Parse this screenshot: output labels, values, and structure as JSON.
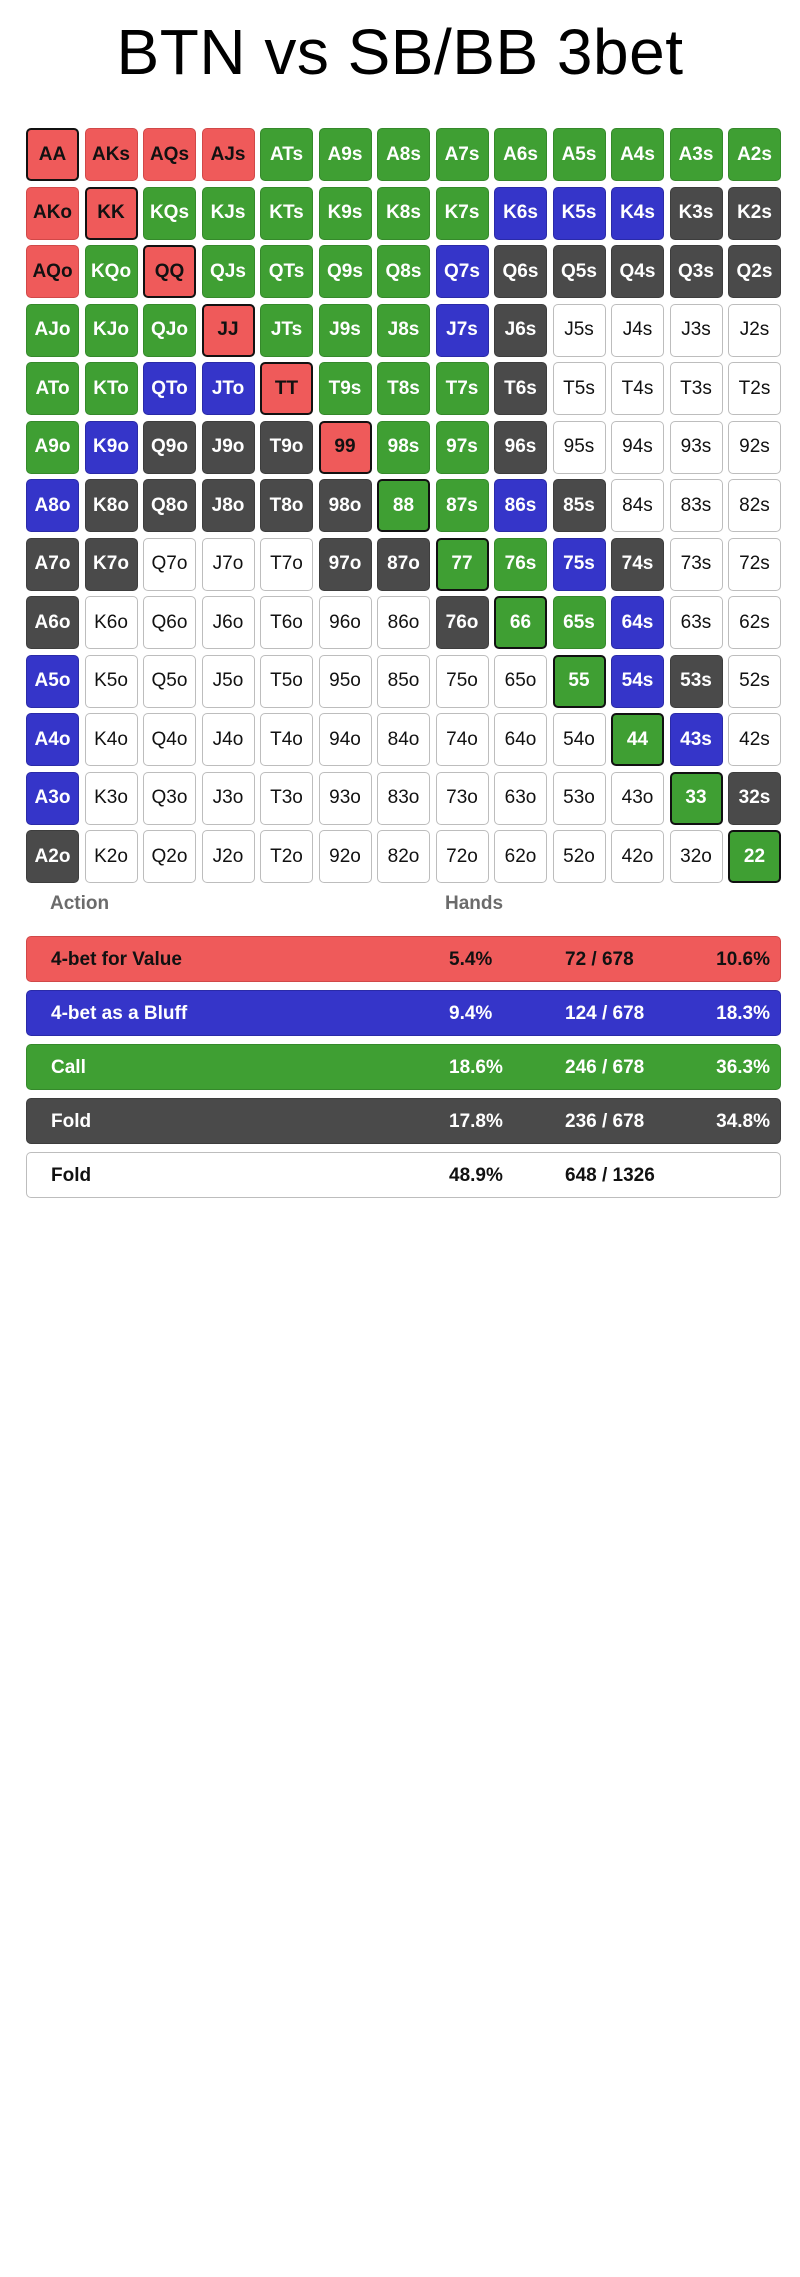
{
  "title": "BTN vs SB/BB 3bet",
  "colors": {
    "value": "#ef5a5a",
    "bluff": "#3535c9",
    "call": "#3f9f33",
    "fold": "#4a4a4a",
    "not_in_range": "#ffffff"
  },
  "grid": [
    [
      [
        "AA",
        "red",
        1
      ],
      [
        "AKs",
        "red",
        0
      ],
      [
        "AQs",
        "red",
        0
      ],
      [
        "AJs",
        "red",
        0
      ],
      [
        "ATs",
        "green",
        0
      ],
      [
        "A9s",
        "green",
        0
      ],
      [
        "A8s",
        "green",
        0
      ],
      [
        "A7s",
        "green",
        0
      ],
      [
        "A6s",
        "green",
        0
      ],
      [
        "A5s",
        "green",
        0
      ],
      [
        "A4s",
        "green",
        0
      ],
      [
        "A3s",
        "green",
        0
      ],
      [
        "A2s",
        "green",
        0
      ]
    ],
    [
      [
        "AKo",
        "red",
        0
      ],
      [
        "KK",
        "red",
        1
      ],
      [
        "KQs",
        "green",
        0
      ],
      [
        "KJs",
        "green",
        0
      ],
      [
        "KTs",
        "green",
        0
      ],
      [
        "K9s",
        "green",
        0
      ],
      [
        "K8s",
        "green",
        0
      ],
      [
        "K7s",
        "green",
        0
      ],
      [
        "K6s",
        "blue",
        0
      ],
      [
        "K5s",
        "blue",
        0
      ],
      [
        "K4s",
        "blue",
        0
      ],
      [
        "K3s",
        "dark",
        0
      ],
      [
        "K2s",
        "dark",
        0
      ]
    ],
    [
      [
        "AQo",
        "red",
        0
      ],
      [
        "KQo",
        "green",
        0
      ],
      [
        "QQ",
        "red",
        1
      ],
      [
        "QJs",
        "green",
        0
      ],
      [
        "QTs",
        "green",
        0
      ],
      [
        "Q9s",
        "green",
        0
      ],
      [
        "Q8s",
        "green",
        0
      ],
      [
        "Q7s",
        "blue",
        0
      ],
      [
        "Q6s",
        "dark",
        0
      ],
      [
        "Q5s",
        "dark",
        0
      ],
      [
        "Q4s",
        "dark",
        0
      ],
      [
        "Q3s",
        "dark",
        0
      ],
      [
        "Q2s",
        "dark",
        0
      ]
    ],
    [
      [
        "AJo",
        "green",
        0
      ],
      [
        "KJo",
        "green",
        0
      ],
      [
        "QJo",
        "green",
        0
      ],
      [
        "JJ",
        "red",
        1
      ],
      [
        "JTs",
        "green",
        0
      ],
      [
        "J9s",
        "green",
        0
      ],
      [
        "J8s",
        "green",
        0
      ],
      [
        "J7s",
        "blue",
        0
      ],
      [
        "J6s",
        "dark",
        0
      ],
      [
        "J5s",
        "white",
        0
      ],
      [
        "J4s",
        "white",
        0
      ],
      [
        "J3s",
        "white",
        0
      ],
      [
        "J2s",
        "white",
        0
      ]
    ],
    [
      [
        "ATo",
        "green",
        0
      ],
      [
        "KTo",
        "green",
        0
      ],
      [
        "QTo",
        "blue",
        0
      ],
      [
        "JTo",
        "blue",
        0
      ],
      [
        "TT",
        "red",
        1
      ],
      [
        "T9s",
        "green",
        0
      ],
      [
        "T8s",
        "green",
        0
      ],
      [
        "T7s",
        "green",
        0
      ],
      [
        "T6s",
        "dark",
        0
      ],
      [
        "T5s",
        "white",
        0
      ],
      [
        "T4s",
        "white",
        0
      ],
      [
        "T3s",
        "white",
        0
      ],
      [
        "T2s",
        "white",
        0
      ]
    ],
    [
      [
        "A9o",
        "green",
        0
      ],
      [
        "K9o",
        "blue",
        0
      ],
      [
        "Q9o",
        "dark",
        0
      ],
      [
        "J9o",
        "dark",
        0
      ],
      [
        "T9o",
        "dark",
        0
      ],
      [
        "99",
        "red",
        1
      ],
      [
        "98s",
        "green",
        0
      ],
      [
        "97s",
        "green",
        0
      ],
      [
        "96s",
        "dark",
        0
      ],
      [
        "95s",
        "white",
        0
      ],
      [
        "94s",
        "white",
        0
      ],
      [
        "93s",
        "white",
        0
      ],
      [
        "92s",
        "white",
        0
      ]
    ],
    [
      [
        "A8o",
        "blue",
        0
      ],
      [
        "K8o",
        "dark",
        0
      ],
      [
        "Q8o",
        "dark",
        0
      ],
      [
        "J8o",
        "dark",
        0
      ],
      [
        "T8o",
        "dark",
        0
      ],
      [
        "98o",
        "dark",
        0
      ],
      [
        "88",
        "green",
        1
      ],
      [
        "87s",
        "green",
        0
      ],
      [
        "86s",
        "blue",
        0
      ],
      [
        "85s",
        "dark",
        0
      ],
      [
        "84s",
        "white",
        0
      ],
      [
        "83s",
        "white",
        0
      ],
      [
        "82s",
        "white",
        0
      ]
    ],
    [
      [
        "A7o",
        "dark",
        0
      ],
      [
        "K7o",
        "dark",
        0
      ],
      [
        "Q7o",
        "white",
        0
      ],
      [
        "J7o",
        "white",
        0
      ],
      [
        "T7o",
        "white",
        0
      ],
      [
        "97o",
        "dark",
        0
      ],
      [
        "87o",
        "dark",
        0
      ],
      [
        "77",
        "green",
        1
      ],
      [
        "76s",
        "green",
        0
      ],
      [
        "75s",
        "blue",
        0
      ],
      [
        "74s",
        "dark",
        0
      ],
      [
        "73s",
        "white",
        0
      ],
      [
        "72s",
        "white",
        0
      ]
    ],
    [
      [
        "A6o",
        "dark",
        0
      ],
      [
        "K6o",
        "white",
        0
      ],
      [
        "Q6o",
        "white",
        0
      ],
      [
        "J6o",
        "white",
        0
      ],
      [
        "T6o",
        "white",
        0
      ],
      [
        "96o",
        "white",
        0
      ],
      [
        "86o",
        "white",
        0
      ],
      [
        "76o",
        "dark",
        0
      ],
      [
        "66",
        "green",
        1
      ],
      [
        "65s",
        "green",
        0
      ],
      [
        "64s",
        "blue",
        0
      ],
      [
        "63s",
        "white",
        0
      ],
      [
        "62s",
        "white",
        0
      ]
    ],
    [
      [
        "A5o",
        "blue",
        0
      ],
      [
        "K5o",
        "white",
        0
      ],
      [
        "Q5o",
        "white",
        0
      ],
      [
        "J5o",
        "white",
        0
      ],
      [
        "T5o",
        "white",
        0
      ],
      [
        "95o",
        "white",
        0
      ],
      [
        "85o",
        "white",
        0
      ],
      [
        "75o",
        "white",
        0
      ],
      [
        "65o",
        "white",
        0
      ],
      [
        "55",
        "green",
        1
      ],
      [
        "54s",
        "blue",
        0
      ],
      [
        "53s",
        "dark",
        0
      ],
      [
        "52s",
        "white",
        0
      ]
    ],
    [
      [
        "A4o",
        "blue",
        0
      ],
      [
        "K4o",
        "white",
        0
      ],
      [
        "Q4o",
        "white",
        0
      ],
      [
        "J4o",
        "white",
        0
      ],
      [
        "T4o",
        "white",
        0
      ],
      [
        "94o",
        "white",
        0
      ],
      [
        "84o",
        "white",
        0
      ],
      [
        "74o",
        "white",
        0
      ],
      [
        "64o",
        "white",
        0
      ],
      [
        "54o",
        "white",
        0
      ],
      [
        "44",
        "green",
        1
      ],
      [
        "43s",
        "blue",
        0
      ],
      [
        "42s",
        "white",
        0
      ]
    ],
    [
      [
        "A3o",
        "blue",
        0
      ],
      [
        "K3o",
        "white",
        0
      ],
      [
        "Q3o",
        "white",
        0
      ],
      [
        "J3o",
        "white",
        0
      ],
      [
        "T3o",
        "white",
        0
      ],
      [
        "93o",
        "white",
        0
      ],
      [
        "83o",
        "white",
        0
      ],
      [
        "73o",
        "white",
        0
      ],
      [
        "63o",
        "white",
        0
      ],
      [
        "53o",
        "white",
        0
      ],
      [
        "43o",
        "white",
        0
      ],
      [
        "33",
        "green",
        1
      ],
      [
        "32s",
        "dark",
        0
      ]
    ],
    [
      [
        "A2o",
        "dark",
        0
      ],
      [
        "K2o",
        "white",
        0
      ],
      [
        "Q2o",
        "white",
        0
      ],
      [
        "J2o",
        "white",
        0
      ],
      [
        "T2o",
        "white",
        0
      ],
      [
        "92o",
        "white",
        0
      ],
      [
        "82o",
        "white",
        0
      ],
      [
        "72o",
        "white",
        0
      ],
      [
        "62o",
        "white",
        0
      ],
      [
        "52o",
        "white",
        0
      ],
      [
        "42o",
        "white",
        0
      ],
      [
        "32o",
        "white",
        0
      ],
      [
        "22",
        "green",
        1
      ]
    ]
  ],
  "summary": {
    "headers": {
      "action": "Action",
      "hands": "Hands"
    },
    "rows": [
      {
        "label": "4-bet for Value",
        "pct": "5.4%",
        "combos": "72 / 678",
        "pct_range": "10.6%",
        "color": "red"
      },
      {
        "label": "4-bet as a Bluff",
        "pct": "9.4%",
        "combos": "124 / 678",
        "pct_range": "18.3%",
        "color": "blue"
      },
      {
        "label": "Call",
        "pct": "18.6%",
        "combos": "246 / 678",
        "pct_range": "36.3%",
        "color": "green"
      },
      {
        "label": "Fold",
        "pct": "17.8%",
        "combos": "236 / 678",
        "pct_range": "34.8%",
        "color": "dark"
      },
      {
        "label": "Fold",
        "pct": "48.9%",
        "combos": "648 / 1326",
        "pct_range": "",
        "color": "white"
      }
    ]
  }
}
